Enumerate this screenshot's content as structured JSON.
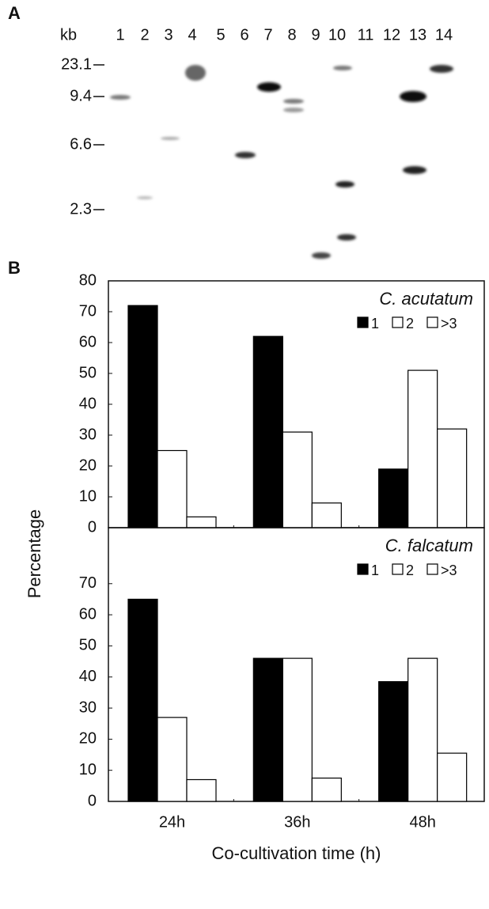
{
  "gel": {
    "panel_label": "A",
    "unit": "kb",
    "lanes": [
      "1",
      "2",
      "3",
      "4",
      "5",
      "6",
      "7",
      "8",
      "9",
      "10",
      "11",
      "12",
      "13",
      "14"
    ],
    "markers": [
      "23.1",
      "9.4",
      "6.6",
      "2.3"
    ]
  },
  "panel_b_label": "B",
  "chart_data": [
    {
      "type": "bar",
      "title": "C. acutatum",
      "ylabel": "Percentage",
      "categories": [
        "24h",
        "36h",
        "48h"
      ],
      "series": [
        {
          "name": "1",
          "color": "#000000",
          "values": [
            72,
            62,
            19
          ]
        },
        {
          "name": "2",
          "color": "#ffffff",
          "values": [
            25,
            31,
            51
          ]
        },
        {
          "name": ">3",
          "color": "#ffffff",
          "values": [
            3.5,
            8,
            32
          ]
        }
      ],
      "ylim": [
        0,
        80
      ],
      "yticks": [
        0,
        10,
        20,
        30,
        40,
        50,
        60,
        70,
        80
      ],
      "legend": "upper right"
    },
    {
      "type": "bar",
      "title": "C. falcatum",
      "xlabel": "Co-cultivation time (h)",
      "categories": [
        "24h",
        "36h",
        "48h"
      ],
      "series": [
        {
          "name": "1",
          "color": "#000000",
          "values": [
            65,
            46,
            38.5
          ]
        },
        {
          "name": "2",
          "color": "#ffffff",
          "values": [
            27,
            46,
            46
          ]
        },
        {
          "name": ">3",
          "color": "#ffffff",
          "values": [
            7,
            7.5,
            15.5
          ]
        }
      ],
      "ylim": [
        0,
        88
      ],
      "yticks": [
        0,
        10,
        20,
        30,
        40,
        50,
        60,
        70
      ],
      "legend": "upper right"
    }
  ]
}
